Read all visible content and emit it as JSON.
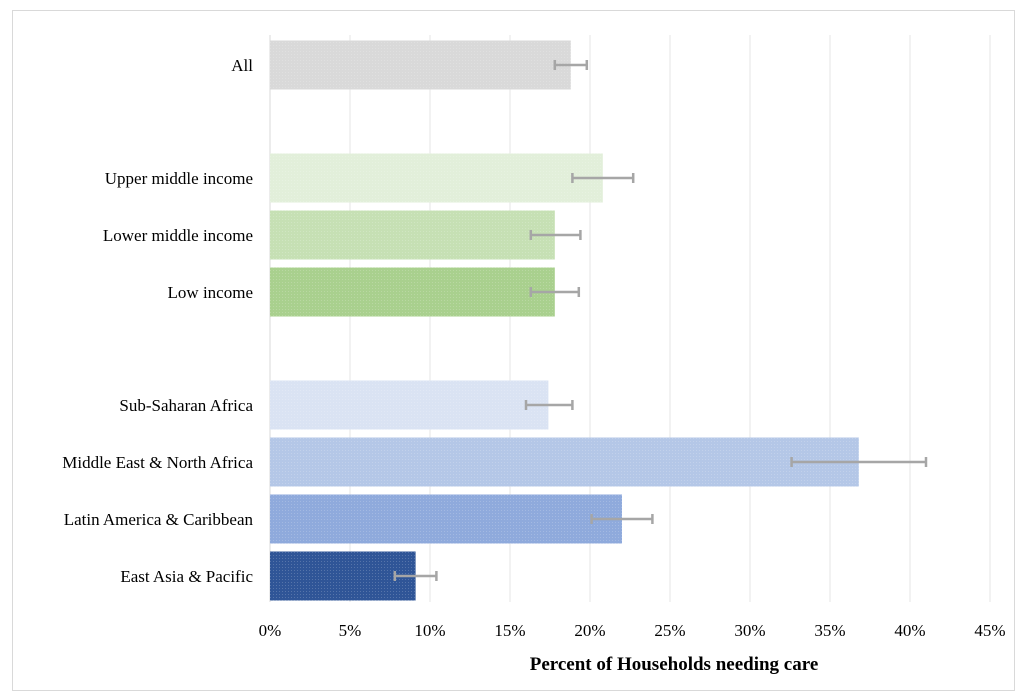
{
  "chart_data": {
    "type": "bar",
    "orientation": "horizontal",
    "title": "",
    "xlabel": "Percent of Households needing care",
    "ylabel": "",
    "xlim": [
      0,
      45
    ],
    "xticks": [
      "0%",
      "5%",
      "10%",
      "15%",
      "20%",
      "25%",
      "30%",
      "35%",
      "40%",
      "45%"
    ],
    "grid": true,
    "categories": [
      "All",
      "Upper middle income",
      "Lower middle income",
      "Low income",
      "Sub-Saharan Africa",
      "Middle East & North Africa",
      "Latin America & Caribbean",
      "East Asia & Pacific"
    ],
    "values": [
      18.8,
      20.8,
      17.8,
      17.8,
      17.4,
      36.8,
      22.0,
      9.1
    ],
    "error_low": [
      17.8,
      18.9,
      16.3,
      16.3,
      16.0,
      32.6,
      20.1,
      7.8
    ],
    "error_high": [
      19.8,
      22.7,
      19.4,
      19.3,
      18.9,
      41.0,
      23.9,
      10.4
    ],
    "colors": [
      "#d9d9d9",
      "#e2efda",
      "#c6e0b4",
      "#a9d08e",
      "#dae3f3",
      "#b4c7e7",
      "#8faadc",
      "#2f5597"
    ],
    "error_bar_color": "#a6a6a6"
  }
}
